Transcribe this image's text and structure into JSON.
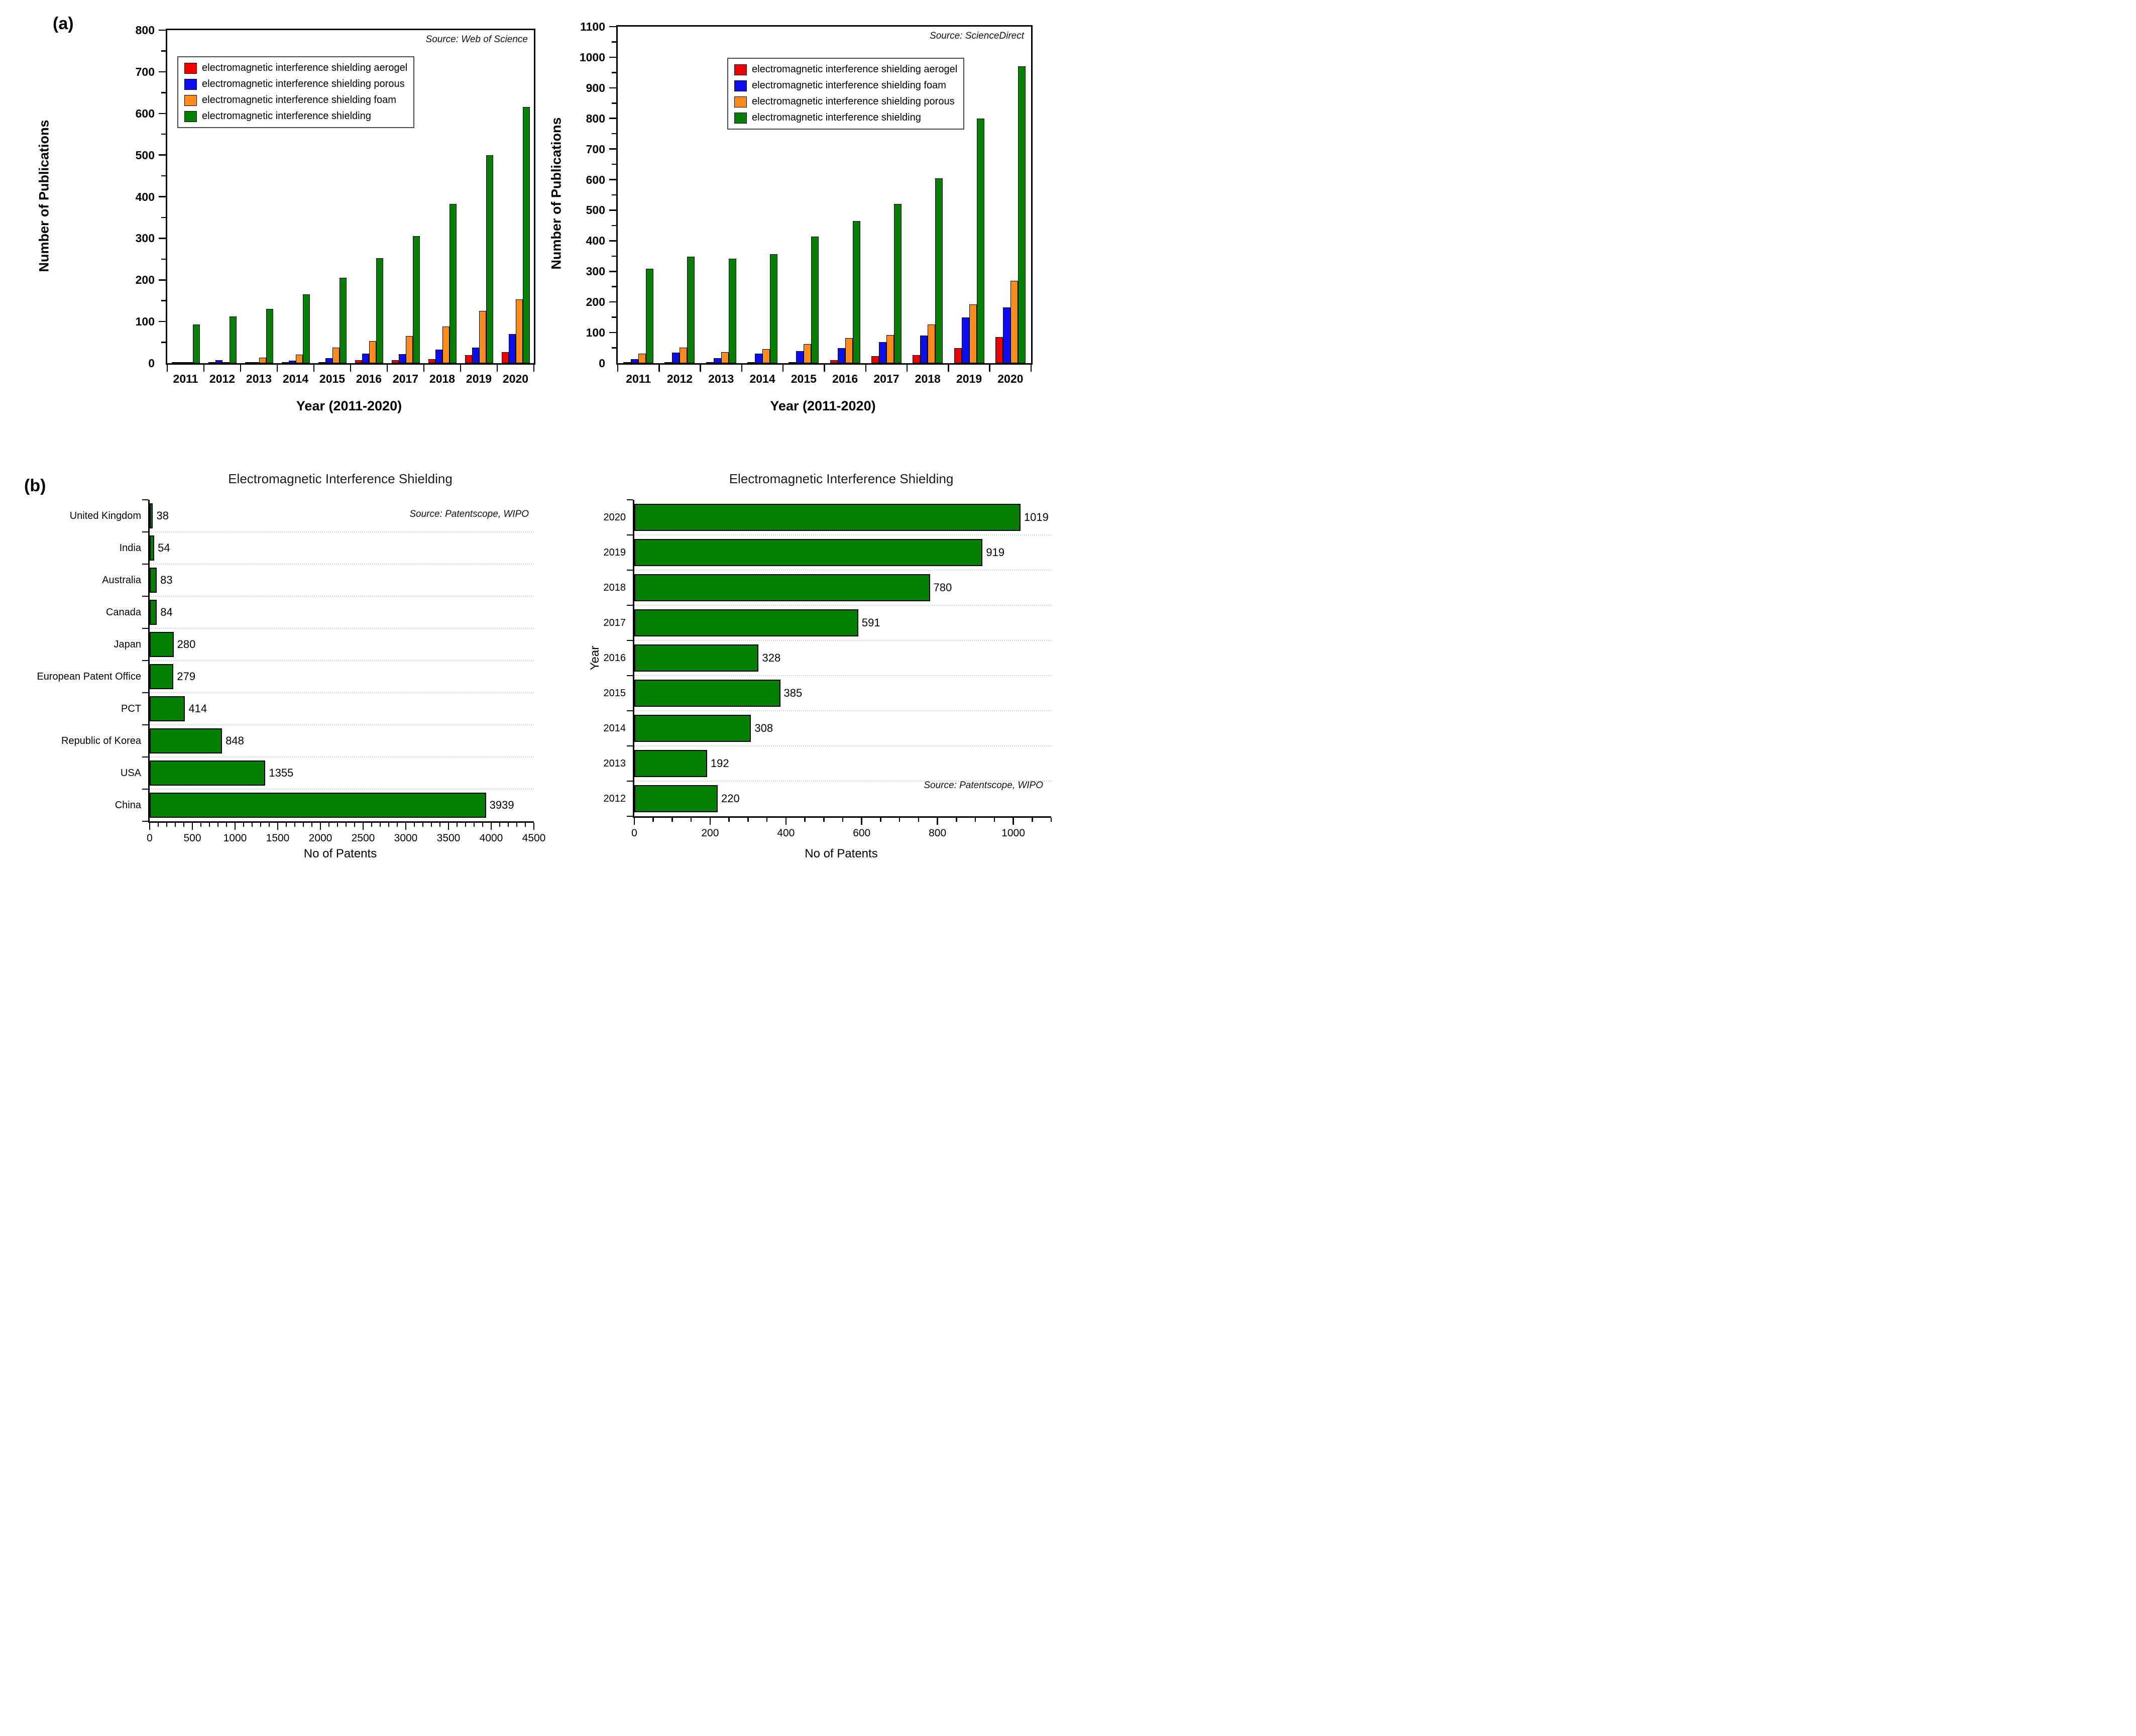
{
  "figure": {
    "panel_a_label": "(a)",
    "panel_b_label": "(b)"
  },
  "colors": {
    "red": "#f20000",
    "blue": "#0d0df2",
    "orange": "#ff8c1a",
    "green": "#048104"
  },
  "chart_data": [
    {
      "id": "wos",
      "type": "bar",
      "orientation": "vertical",
      "grouped": true,
      "source_note": "Source: Web of Science",
      "xlabel": "Year (2011-2020)",
      "ylabel": "Number of Publications",
      "ylim": [
        0,
        800
      ],
      "ytick_step": 100,
      "ytick_minor": 50,
      "grid": false,
      "legend_position": "upper-left-inside",
      "categories": [
        "2011",
        "2012",
        "2013",
        "2014",
        "2015",
        "2016",
        "2017",
        "2018",
        "2019",
        "2020"
      ],
      "series": [
        {
          "name": "electromagnetic interference shielding aerogel",
          "color_key": "red",
          "values": [
            1,
            1,
            2,
            2,
            3,
            7,
            7,
            10,
            19,
            27
          ]
        },
        {
          "name": "electromagnetic interference shielding porous",
          "color_key": "blue",
          "values": [
            2,
            7,
            3,
            6,
            12,
            23,
            22,
            33,
            38,
            70
          ]
        },
        {
          "name": "electromagnetic interference shielding foam",
          "color_key": "orange",
          "values": [
            2,
            3,
            13,
            20,
            37,
            53,
            65,
            88,
            125,
            153
          ]
        },
        {
          "name": "electromagnetic interference shielding",
          "color_key": "green",
          "values": [
            93,
            112,
            130,
            165,
            205,
            252,
            305,
            383,
            500,
            616
          ]
        }
      ]
    },
    {
      "id": "sciencedirect",
      "type": "bar",
      "orientation": "vertical",
      "grouped": true,
      "source_note": "Source: ScienceDirect",
      "xlabel": "Year (2011-2020)",
      "ylabel": "Number of Publications",
      "ylim": [
        0,
        1100
      ],
      "ytick_step": 100,
      "ytick_minor": 50,
      "grid": false,
      "legend_position": "upper-left-inside",
      "categories": [
        "2011",
        "2012",
        "2013",
        "2014",
        "2015",
        "2016",
        "2017",
        "2018",
        "2019",
        "2020"
      ],
      "series": [
        {
          "name": "electromagnetic interference shielding aerogel",
          "color_key": "red",
          "values": [
            1,
            4,
            3,
            2,
            3,
            10,
            23,
            27,
            50,
            85
          ]
        },
        {
          "name": "electromagnetic interference shielding foam",
          "color_key": "blue",
          "values": [
            13,
            34,
            17,
            31,
            40,
            50,
            69,
            90,
            150,
            182
          ]
        },
        {
          "name": "electromagnetic interference shielding porous",
          "color_key": "orange",
          "values": [
            32,
            51,
            36,
            46,
            62,
            82,
            92,
            127,
            192,
            270
          ]
        },
        {
          "name": "electromagnetic interference shielding",
          "color_key": "green",
          "values": [
            308,
            348,
            341,
            357,
            413,
            465,
            520,
            605,
            800,
            970
          ]
        }
      ]
    },
    {
      "id": "patents_by_country",
      "type": "bar",
      "orientation": "horizontal",
      "title": "Electromagnetic Interference Shielding",
      "source_note": "Source: Patentscope, WIPO",
      "xlabel": "No of Patents",
      "xlim": [
        0,
        4500
      ],
      "xtick_step": 500,
      "xtick_minor": 100,
      "grid": "dotted-horizontal",
      "bar_color_key": "green",
      "categories": [
        "United Kingdom",
        "India",
        "Australia",
        "Canada",
        "Japan",
        "European Patent Office",
        "PCT",
        "Republic of Korea",
        "USA",
        "China"
      ],
      "values": [
        38,
        54,
        83,
        84,
        280,
        279,
        414,
        848,
        1355,
        3939
      ]
    },
    {
      "id": "patents_by_year",
      "type": "bar",
      "orientation": "horizontal",
      "title": "Electromagnetic Interference Shielding",
      "source_note": "Source: Patentscope, WIPO",
      "xlabel": "No of Patents",
      "ylabel": "Year",
      "xlim": [
        0,
        1100
      ],
      "xtick_step": 200,
      "xtick_minor": 50,
      "grid": "dotted-horizontal",
      "bar_color_key": "green",
      "categories": [
        "2020",
        "2019",
        "2018",
        "2017",
        "2016",
        "2015",
        "2014",
        "2013",
        "2012"
      ],
      "values": [
        1019,
        919,
        780,
        591,
        328,
        385,
        308,
        192,
        220
      ]
    }
  ]
}
